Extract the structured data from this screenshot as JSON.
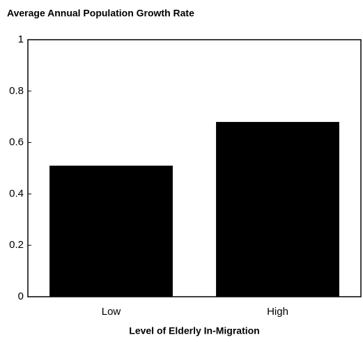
{
  "chart_data": {
    "type": "bar",
    "title": "Average Annual Population Growth Rate",
    "x_label": "Level of Elderly In-Migration",
    "categories": [
      "Low",
      "High"
    ],
    "values": [
      0.51,
      0.68
    ],
    "color": "#000000",
    "ylim": [
      0,
      1
    ],
    "yticks": [
      0,
      0.2,
      0.4,
      0.6,
      0.8,
      1
    ],
    "grid": false
  }
}
